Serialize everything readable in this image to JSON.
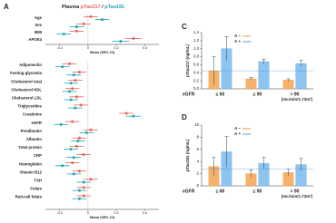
{
  "chart_data": [
    {
      "type": "forest",
      "panel_label": "A",
      "title_prefix": "Plasma",
      "title_separator": "/",
      "categories": [
        "Age",
        "Sex",
        "BMI",
        "APOE4"
      ],
      "series": [
        {
          "name": "pTau217",
          "color": "#e8625a",
          "values": [
            0.02,
            -0.03,
            -0.08,
            0.32
          ],
          "errors": [
            0.05,
            0.05,
            0.05,
            0.06
          ]
        },
        {
          "name": "pTau181",
          "color": "#1fa5b0",
          "values": [
            0.1,
            -0.08,
            -0.17,
            0.23
          ],
          "errors": [
            0.05,
            0.05,
            0.05,
            0.06
          ]
        }
      ],
      "xlim": [
        -0.3,
        0.5
      ],
      "xticks": [
        -0.2,
        0,
        0.2,
        0.4
      ],
      "reference_line": 0,
      "x_label": "Mean (95% CI)"
    },
    {
      "type": "forest",
      "categories": [
        "Adiponectin",
        "Fasting glycemia",
        "Cholesterol total",
        "Cholesterol HDL",
        "Cholesterol LDL",
        "Triglycerides",
        "Creatinine",
        "eGFR",
        "Prealbumin",
        "Albumin",
        "Total protein",
        "CRP",
        "Hemoglobin",
        "Vitamin B12",
        "TSH",
        "Folate",
        "Red-cell folate"
      ],
      "series": [
        {
          "name": "pTau217",
          "color": "#e8625a",
          "values": [
            -0.13,
            -0.06,
            -0.09,
            -0.11,
            -0.08,
            -0.05,
            0.27,
            -0.11,
            0.02,
            -0.06,
            -0.08,
            -0.03,
            -0.11,
            -0.06,
            0.02,
            -0.03,
            -0.03
          ],
          "errors": [
            0.05,
            0.05,
            0.05,
            0.05,
            0.05,
            0.05,
            0.05,
            0.05,
            0.05,
            0.05,
            0.05,
            0.05,
            0.05,
            0.05,
            0.05,
            0.05,
            0.05
          ]
        },
        {
          "name": "pTau181",
          "color": "#1fa5b0",
          "values": [
            -0.18,
            -0.1,
            -0.12,
            -0.13,
            -0.12,
            -0.09,
            0.32,
            -0.19,
            -0.01,
            -0.07,
            -0.12,
            -0.1,
            -0.18,
            -0.1,
            -0.03,
            -0.06,
            -0.06
          ],
          "errors": [
            0.05,
            0.05,
            0.05,
            0.05,
            0.05,
            0.05,
            0.05,
            0.05,
            0.05,
            0.05,
            0.05,
            0.05,
            0.05,
            0.05,
            0.05,
            0.05,
            0.05
          ]
        }
      ],
      "xlim": [
        -0.3,
        0.5
      ],
      "xticks": [
        -0.2,
        0,
        0.2,
        0.4
      ],
      "reference_line": 0,
      "x_label": "Mean (95% CI)"
    },
    {
      "type": "bar",
      "panel_label": "C",
      "y_label": "pTau217 (ng/mL)",
      "x_label": "eGFR",
      "x_unit": "(mL/min/1.73m²)",
      "categories": [
        "≤ 60",
        "≤ 90",
        "> 90"
      ],
      "series": [
        {
          "name": "A −",
          "color": "#f4b26b",
          "line_color": "#ef9a3c",
          "values": [
            0.45,
            0.25,
            0.22
          ],
          "errors": [
            0.35,
            0.03,
            0.03
          ]
        },
        {
          "name": "A +",
          "color": "#8ec5f0",
          "line_color": "#3fa3e6",
          "values": [
            1.0,
            0.68,
            0.63
          ],
          "errors": [
            0.3,
            0.06,
            0.08
          ]
        }
      ],
      "ylim": [
        0,
        1.4
      ],
      "yticks": [
        {
          "value": 0,
          "label": "0.0"
        },
        0.2,
        0.4,
        0.6,
        0.8,
        {
          "value": 1,
          "label": "1.0"
        },
        1.2,
        1.4
      ],
      "reference_line": 0.45,
      "legend_position": "top"
    },
    {
      "type": "bar",
      "panel_label": "D",
      "y_label": "pTau181 (ng/mL)",
      "x_label": "eGFR",
      "x_unit": "(mL/min/1.73m²)",
      "categories": [
        "≤ 60",
        "≤ 90",
        "> 90"
      ],
      "series": [
        {
          "name": "A −",
          "color": "#f4b26b",
          "line_color": "#ef9a3c",
          "values": [
            3.2,
            2.0,
            2.2
          ],
          "errors": [
            1.5,
            0.6,
            0.6
          ]
        },
        {
          "name": "A +",
          "color": "#8ec5f0",
          "line_color": "#3fa3e6",
          "values": [
            5.6,
            3.7,
            3.5
          ],
          "errors": [
            2.5,
            1.0,
            1.0
          ]
        }
      ],
      "ylim": [
        0,
        10
      ],
      "yticks": [
        0,
        2,
        4,
        6,
        8,
        10
      ],
      "reference_line": 2.8,
      "legend_position": "top"
    }
  ]
}
